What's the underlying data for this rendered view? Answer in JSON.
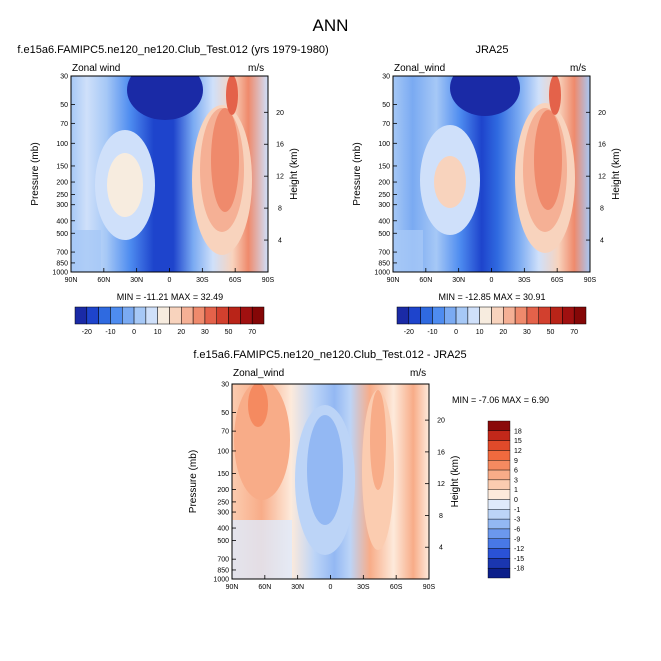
{
  "main_title": "ANN",
  "panels": {
    "test": {
      "title": "f.e15a6.FAMIPC5.ne120_ne120.Club_Test.012 (yrs 1979-1980)",
      "left_label": "Zonal wind",
      "right_label": "m/s",
      "stats": "MIN = -11.21  MAX =  32.49"
    },
    "obs": {
      "title": "JRA25",
      "left_label": "Zonal_wind",
      "right_label": "m/s",
      "stats": "MIN = -12.85  MAX =  30.91"
    },
    "diff": {
      "title": "f.e15a6.FAMIPC5.ne120_ne120.Club_Test.012 - JRA25",
      "left_label": "Zonal_wind",
      "right_label": "m/s",
      "stats": "MIN =  -7.06  MAX =   6.90"
    }
  },
  "axes": {
    "ylabel": "Pressure (mb)",
    "ylabel_right": "Height (km)",
    "pressure_ticks": [
      "30",
      "50",
      "70",
      "100",
      "150",
      "200",
      "250",
      "300",
      "400",
      "500",
      "700",
      "850",
      "1000"
    ],
    "pressure_values": [
      30,
      50,
      70,
      100,
      150,
      200,
      250,
      300,
      400,
      500,
      700,
      850,
      1000
    ],
    "height_ticks": [
      "20",
      "16",
      "12",
      "8",
      "4"
    ],
    "lat_ticks": [
      "90N",
      "60N",
      "30N",
      "0",
      "30S",
      "60S",
      "90S"
    ],
    "lat_values": [
      90,
      60,
      30,
      0,
      -30,
      -60,
      -90
    ]
  },
  "colorbars": {
    "field_labels": [
      "-20",
      "-10",
      "0",
      "10",
      "20",
      "30",
      "50",
      "70"
    ],
    "field_colors": [
      "#1a2aa6",
      "#1e44cc",
      "#2f6ae0",
      "#4e8cf0",
      "#7aaaf2",
      "#a6c8f6",
      "#cfe0fa",
      "#f7ecdf",
      "#f8d3bd",
      "#f5b095",
      "#ef8a6c",
      "#e4624a",
      "#d2402e",
      "#b92418",
      "#a01010",
      "#850707"
    ],
    "diff_labels": [
      "18",
      "15",
      "12",
      "9",
      "6",
      "3",
      "1",
      "0",
      "-1",
      "-3",
      "-6",
      "-9",
      "-12",
      "-15",
      "-18"
    ],
    "diff_colors": [
      "#8a0a0a",
      "#c2281a",
      "#e04a2a",
      "#f06a3e",
      "#f58a60",
      "#f8ac88",
      "#fbccb0",
      "#fdeadb",
      "#dfeafb",
      "#bcd4f7",
      "#93b8f3",
      "#6b98ee",
      "#4878e6",
      "#2a52d6",
      "#1a36b0",
      "#0c1f8a"
    ]
  },
  "chart_data": [
    {
      "type": "heatmap",
      "title": "f.e15a6.FAMIPC5.ne120_ne120.Club_Test.012 (yrs 1979-1980)",
      "field": "Zonal wind",
      "units": "m/s",
      "xlabel": "",
      "ylabel": "Pressure (mb)",
      "x_range": [
        90,
        -90
      ],
      "y_range": [
        1000,
        30
      ],
      "y_scale": "log",
      "min": -11.21,
      "max": 32.49,
      "jets": [
        {
          "lat": 35,
          "p": 200,
          "u": 20
        },
        {
          "lat": -40,
          "p": 200,
          "u": 32
        }
      ],
      "easterlies": [
        {
          "lat": 10,
          "p": 50,
          "u": -11
        }
      ]
    },
    {
      "type": "heatmap",
      "title": "JRA25",
      "field": "Zonal_wind",
      "units": "m/s",
      "xlabel": "",
      "ylabel": "Pressure (mb)",
      "x_range": [
        90,
        -90
      ],
      "y_range": [
        1000,
        30
      ],
      "y_scale": "log",
      "min": -12.85,
      "max": 30.91,
      "jets": [
        {
          "lat": 32,
          "p": 200,
          "u": 22
        },
        {
          "lat": -35,
          "p": 200,
          "u": 31
        }
      ],
      "easterlies": [
        {
          "lat": 8,
          "p": 40,
          "u": -12
        }
      ]
    },
    {
      "type": "heatmap",
      "title": "f.e15a6.FAMIPC5.ne120_ne120.Club_Test.012 - JRA25",
      "field": "Zonal_wind",
      "units": "m/s",
      "xlabel": "",
      "ylabel": "Pressure (mb)",
      "x_range": [
        90,
        -90
      ],
      "y_range": [
        1000,
        30
      ],
      "y_scale": "log",
      "min": -7.06,
      "max": 6.9
    }
  ]
}
